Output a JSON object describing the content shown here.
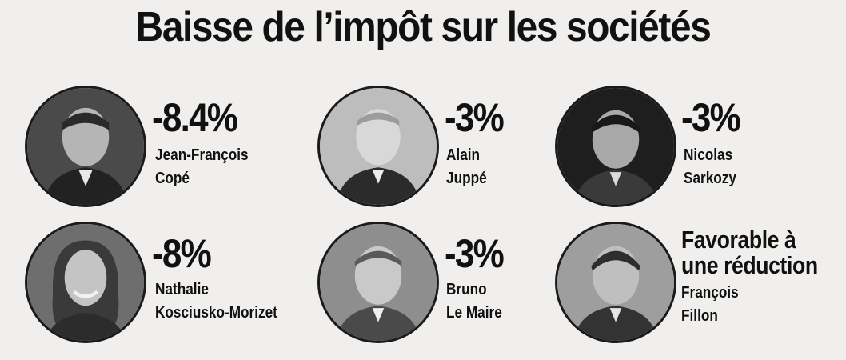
{
  "title": "Baisse de l’impôt sur les sociétés",
  "people": [
    {
      "value": "-8.4%",
      "first": "Jean-François",
      "last": "Copé",
      "portrait": "jean-francois-cope-portrait",
      "tone": "#6a6a6a"
    },
    {
      "value": "-3%",
      "first": "Alain",
      "last": "Juppé",
      "portrait": "alain-juppe-portrait",
      "tone": "#9a9a9a"
    },
    {
      "value": "-3%",
      "first": "Nicolas",
      "last": "Sarkozy",
      "portrait": "nicolas-sarkozy-portrait",
      "tone": "#404040"
    },
    {
      "value": "-8%",
      "first": "Nathalie",
      "last": "Kosciusko-Morizet",
      "portrait": "nathalie-kosciusko-morizet-portrait",
      "tone": "#5a5a5a"
    },
    {
      "value": "-3%",
      "first": "Bruno",
      "last": "Le Maire",
      "portrait": "bruno-le-maire-portrait",
      "tone": "#8a8a8a"
    },
    {
      "value_line1": "Favorable à",
      "value_line2": "une réduction",
      "first": "François",
      "last": "Fillon",
      "portrait": "francois-fillon-portrait",
      "tone": "#7a7a7a"
    }
  ]
}
